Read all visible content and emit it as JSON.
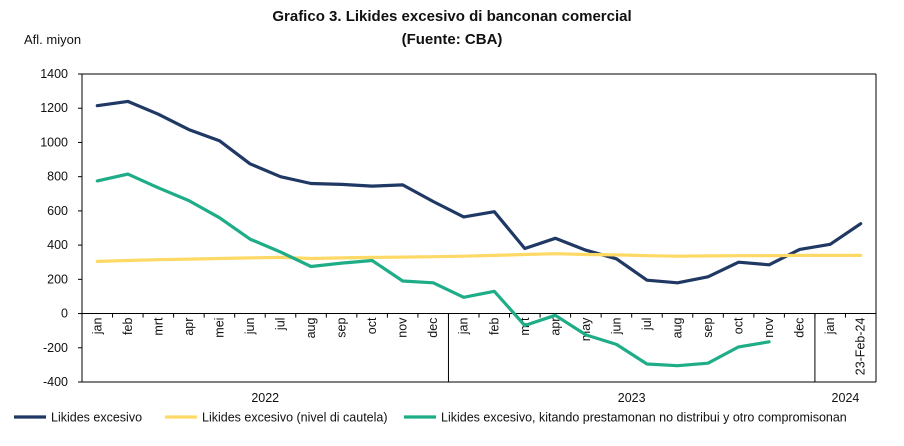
{
  "title": "Grafico 3. Likides excesivo di banconan comercial",
  "subtitle": "(Fuente: CBA)",
  "chart_data": {
    "type": "line",
    "ylabel": "Afl. miyon",
    "ylim": [
      -400,
      1400
    ],
    "yticks": [
      -400,
      -200,
      0,
      200,
      400,
      600,
      800,
      1000,
      1200,
      1400
    ],
    "grid": false,
    "legend_position": "bottom",
    "x": [
      "jan",
      "feb",
      "mrt",
      "apr",
      "mei",
      "jun",
      "jul",
      "aug",
      "sep",
      "oct",
      "nov",
      "dec",
      "jan",
      "feb",
      "mrt",
      "apr",
      "may",
      "jun",
      "jul",
      "aug",
      "sep",
      "oct",
      "nov",
      "dec",
      "jan",
      "23-Feb-24"
    ],
    "year_groups": [
      {
        "label": "2022",
        "start": 0,
        "end": 11
      },
      {
        "label": "2023",
        "start": 12,
        "end": 23
      },
      {
        "label": "2024",
        "start": 24,
        "end": 25
      }
    ],
    "series": [
      {
        "name": "Likides excesivo",
        "color": "#1f3864",
        "values": [
          1215,
          1240,
          1165,
          1075,
          1010,
          875,
          800,
          760,
          755,
          745,
          752,
          655,
          565,
          595,
          380,
          440,
          370,
          320,
          195,
          180,
          215,
          300,
          285,
          375,
          405,
          525
        ]
      },
      {
        "name": "Likides excesivo (nivel di cautela)",
        "color": "#ffd966",
        "values": [
          305,
          310,
          315,
          318,
          322,
          325,
          328,
          322,
          325,
          328,
          330,
          332,
          335,
          340,
          345,
          350,
          345,
          343,
          338,
          335,
          337,
          338,
          338,
          340,
          340,
          340
        ]
      },
      {
        "name": "Likides excesivo, kitando prestamonan no distribui y otro compromisonan",
        "color": "#1ead86",
        "values": [
          775,
          815,
          735,
          660,
          560,
          435,
          360,
          275,
          295,
          310,
          190,
          180,
          95,
          130,
          -70,
          -10,
          -125,
          -180,
          -295,
          -305,
          -290,
          -195,
          -165,
          null,
          null,
          null
        ]
      }
    ]
  }
}
